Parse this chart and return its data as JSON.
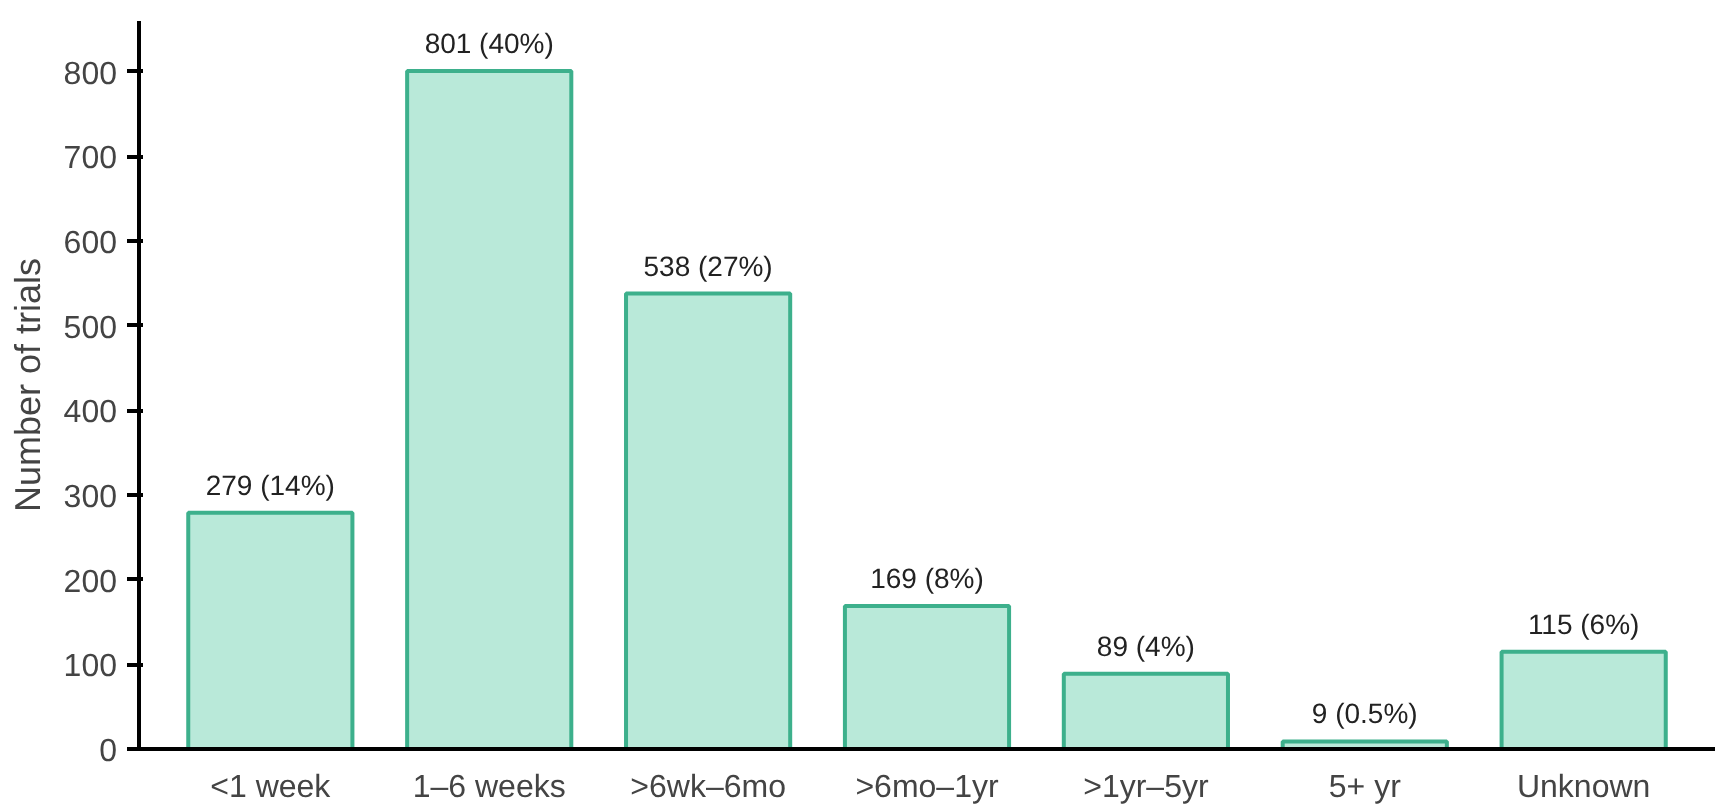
{
  "chart_data": {
    "type": "bar",
    "ylabel": "Number of trials",
    "categories": [
      "<1 week",
      "1–6 weeks",
      ">6wk–6mo",
      ">6mo–1yr",
      ">1yr–5yr",
      "5+ yr",
      "Unknown"
    ],
    "values": [
      279,
      801,
      538,
      169,
      89,
      9,
      115
    ],
    "value_labels": [
      "279 (14%)",
      "801 (40%)",
      "538 (27%)",
      "169 (8%)",
      "89 (4%)",
      "9 (0.5%)",
      "115 (6%)"
    ],
    "color": "#b9e9d9",
    "ylim": [
      0,
      860
    ],
    "yticks": [
      0,
      100,
      200,
      300,
      400,
      500,
      600,
      700,
      800
    ],
    "grid": false
  }
}
